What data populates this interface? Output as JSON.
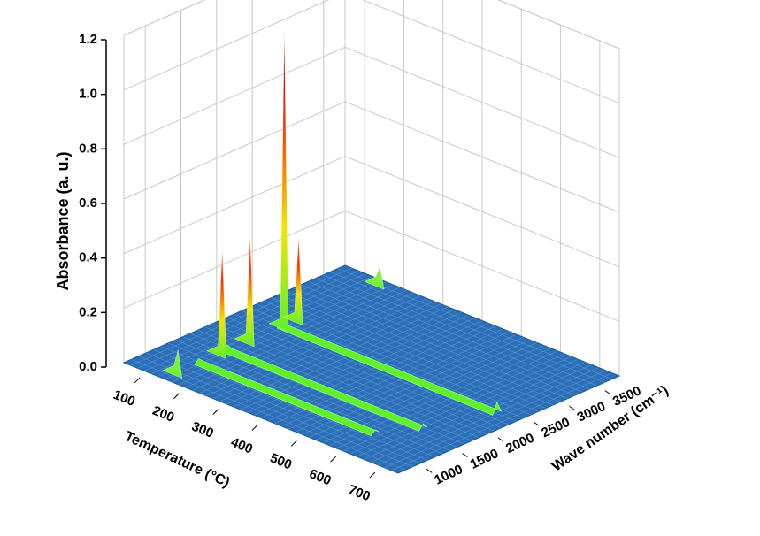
{
  "chart_data": {
    "type": "surface3d",
    "x_label": "Temperature (°C)",
    "y_label": "Wave number (cm⁻¹)",
    "z_label": "Absorbance (a. u.)",
    "xlim": [
      50,
      750
    ],
    "xticks": [
      100,
      200,
      300,
      400,
      500,
      600,
      700
    ],
    "ylim": [
      700,
      3800
    ],
    "yticks": [
      1000,
      1500,
      2000,
      2500,
      3000,
      3500
    ],
    "zlim": [
      0,
      1.2
    ],
    "zticks": [
      {
        "value": 0,
        "label": "0.0"
      },
      0.2,
      0.4,
      0.6,
      0.8,
      {
        "value": 1,
        "label": "1.0"
      },
      1.2
    ],
    "surface_color": "#2a6fb8",
    "grid": true,
    "peaks": {
      "x": [
        150,
        150,
        150,
        150,
        150,
        150
      ],
      "y": [
        910,
        1530,
        1920,
        2400,
        2600,
        3740
      ],
      "z": [
        0.08,
        0.38,
        0.38,
        1.08,
        0.3,
        0.06
      ]
    },
    "ridges": {
      "y": [
        2360,
        1600,
        1200
      ],
      "x_from": [
        150,
        150,
        150
      ],
      "x_to": [
        700,
        650,
        600
      ],
      "z": [
        0.04,
        0.02,
        0.015
      ]
    }
  }
}
